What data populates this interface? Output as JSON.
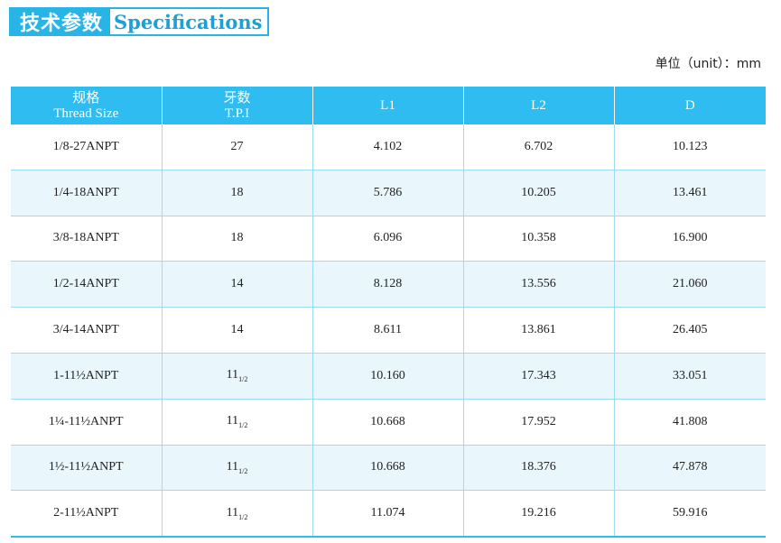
{
  "title": {
    "cn": "技术参数",
    "en": "Specifications"
  },
  "unit_label": "单位（unit）：mm",
  "columns": [
    {
      "cn": "规格",
      "en": "Thread Size"
    },
    {
      "cn": "牙数",
      "en": "T.P.I"
    },
    {
      "cn": "",
      "en": "L1"
    },
    {
      "cn": "",
      "en": "L2"
    },
    {
      "cn": "",
      "en": "D"
    }
  ],
  "rows": [
    {
      "size": "1/8-27ANPT",
      "tpi": "27",
      "tpi_frac": "",
      "l1": "4.102",
      "l2": "6.702",
      "d": "10.123"
    },
    {
      "size": "1/4-18ANPT",
      "tpi": "18",
      "tpi_frac": "",
      "l1": "5.786",
      "l2": "10.205",
      "d": "13.461"
    },
    {
      "size": "3/8-18ANPT",
      "tpi": "18",
      "tpi_frac": "",
      "l1": "6.096",
      "l2": "10.358",
      "d": "16.900"
    },
    {
      "size": "1/2-14ANPT",
      "tpi": "14",
      "tpi_frac": "",
      "l1": "8.128",
      "l2": "13.556",
      "d": "21.060"
    },
    {
      "size": "3/4-14ANPT",
      "tpi": "14",
      "tpi_frac": "",
      "l1": "8.611",
      "l2": "13.861",
      "d": "26.405"
    },
    {
      "size": "1-11½ANPT",
      "tpi": "11",
      "tpi_frac": "1/2",
      "l1": "10.160",
      "l2": "17.343",
      "d": "33.051"
    },
    {
      "size": "1¼-11½ANPT",
      "tpi": "11",
      "tpi_frac": "1/2",
      "l1": "10.668",
      "l2": "17.952",
      "d": "41.808"
    },
    {
      "size": "1½-11½ANPT",
      "tpi": "11",
      "tpi_frac": "1/2",
      "l1": "10.668",
      "l2": "18.376",
      "d": "47.878"
    },
    {
      "size": "2-11½ANPT",
      "tpi": "11",
      "tpi_frac": "1/2",
      "l1": "11.074",
      "l2": "19.216",
      "d": "59.916"
    }
  ],
  "colors": {
    "accent": "#2fbcf0",
    "row_alt": "#e9f7fd"
  }
}
